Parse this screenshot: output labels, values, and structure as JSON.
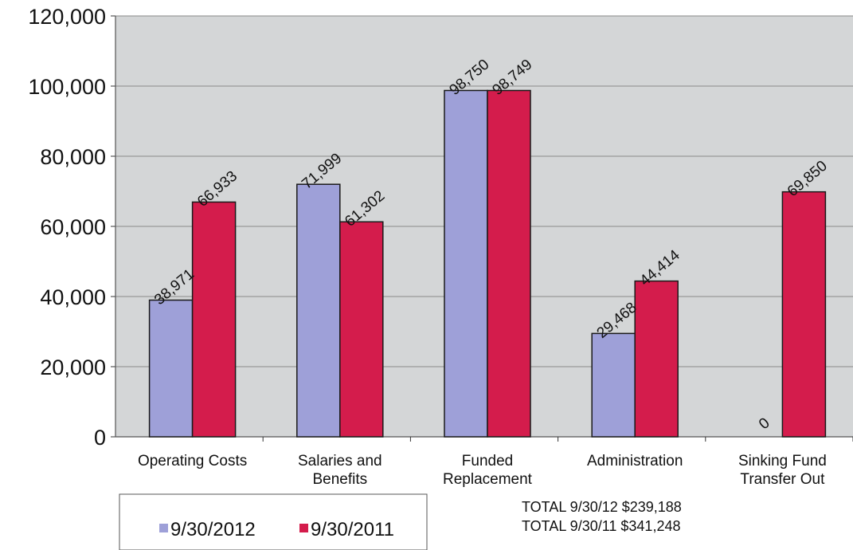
{
  "chart_data": {
    "type": "bar",
    "categories": [
      [
        "Operating Costs"
      ],
      [
        "Salaries and",
        "Benefits"
      ],
      [
        "Funded",
        "Replacement"
      ],
      [
        "Administration"
      ],
      [
        "Sinking Fund",
        "Transfer Out"
      ]
    ],
    "series": [
      {
        "name": "9/30/2012",
        "color": "#9ea0d8",
        "values": [
          38971,
          71999,
          98750,
          29468,
          0
        ],
        "labels": [
          "38,971",
          "71,999",
          "98,750",
          "29,468",
          "0"
        ]
      },
      {
        "name": "9/30/2011",
        "color": "#d41c4c",
        "values": [
          66933,
          61302,
          98749,
          44414,
          69850
        ],
        "labels": [
          "66,933",
          "61,302",
          "98,749",
          "44,414",
          "69,850"
        ]
      }
    ],
    "ylim": [
      0,
      120000
    ],
    "yticks": [
      0,
      20000,
      40000,
      60000,
      80000,
      100000,
      120000
    ],
    "ytick_labels": [
      "0",
      "20,000",
      "40,000",
      "60,000",
      "80,000",
      "100,000",
      "120,000"
    ],
    "grid": true,
    "legend_position": "bottom-left",
    "annotations": [
      "TOTAL 9/30/12 $239,188",
      "TOTAL 9/30/11 $341,248"
    ],
    "plot_background": "#d4d6d7",
    "gridline_color": "#8a8a8a"
  }
}
